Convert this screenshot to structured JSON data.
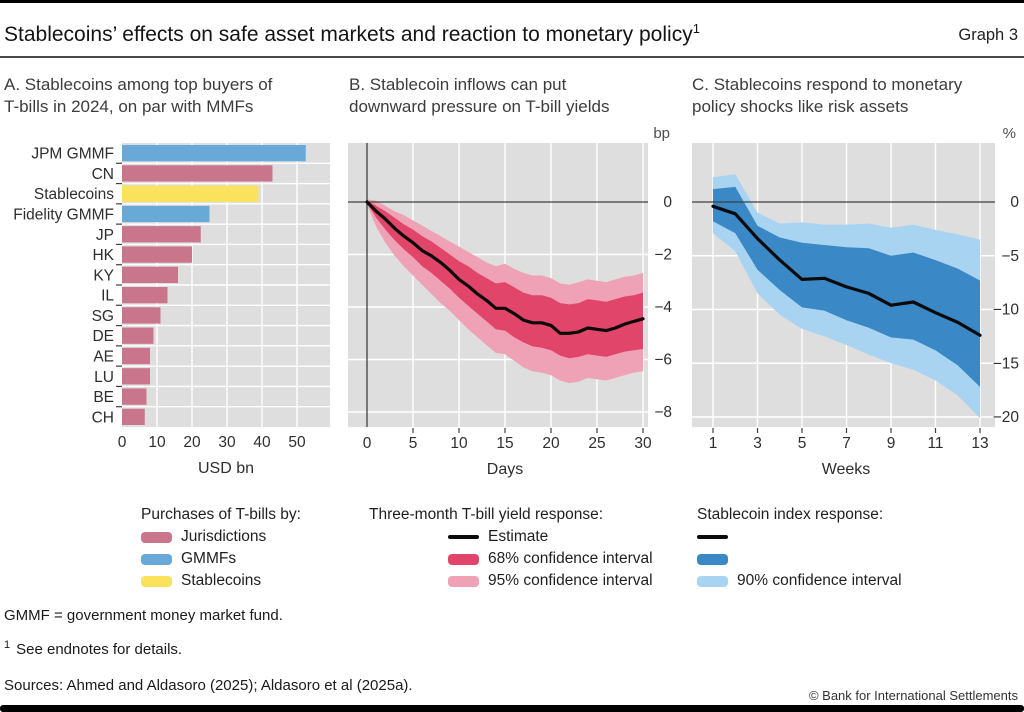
{
  "header": {
    "title": "Stablecoins’ effects on safe asset markets and reaction to monetary policy",
    "title_sup": "1",
    "graph_label": "Graph 3"
  },
  "colors": {
    "plot_bg": "#DEDEDE",
    "grid": "#FFFFFF",
    "axis": "#3F3F3F",
    "tick_text": "#2E2E2E",
    "unit_text": "#4D4D4D",
    "estimate": "#0A0A0A",
    "series": {
      "Jurisdictions": "#C9758C",
      "GMMFs": "#69A9D8",
      "Stablecoins": "#FBE25C"
    },
    "ci68": "#E1466A",
    "ci95": "#EFA2B5",
    "ci_inner_stablecoin": "#3A88C5",
    "ci90_stablecoin": "#A9D4F1"
  },
  "panels": [
    {
      "label": "A",
      "title": "A. Stablecoins among top buyers of T-bills in 2024, on par with MMFs"
    },
    {
      "label": "B",
      "title": "B. Stablecoin inflows can put downward pressure on T-bill yields"
    },
    {
      "label": "C",
      "title": "C. Stablecoins respond to monetary policy shocks like risk assets"
    }
  ],
  "legends": {
    "a": {
      "title": "Purchases of T-bills by:",
      "items": [
        {
          "label": "Jurisdictions"
        },
        {
          "label": "GMMFs"
        },
        {
          "label": "Stablecoins"
        }
      ]
    },
    "b": {
      "title": "Three-month T-bill yield response:",
      "items": [
        {
          "label": "Estimate"
        },
        {
          "label": "68% confidence interval"
        },
        {
          "label": "95% confidence interval"
        }
      ]
    },
    "c": {
      "title": "Stablecoin index response:",
      "items": [
        {
          "label": ""
        },
        {
          "label": ""
        },
        {
          "label": "90% confidence interval"
        }
      ]
    }
  },
  "footnotes": {
    "gmmf": "GMMF = government money market fund.",
    "sup": "1",
    "endnotes": "See endnotes for details.",
    "sources": "Sources: Ahmed and Aldasoro (2025); Aldasoro et al (2025a).",
    "copyright": "© Bank for International Settlements"
  },
  "chart_data": [
    {
      "panel": "A",
      "type": "bar",
      "orientation": "horizontal",
      "title": "A. Stablecoins among top buyers of T-bills in 2024, on par with MMFs",
      "xlabel": "USD bn",
      "xlim": [
        0,
        59.5
      ],
      "xticks": [
        0,
        10,
        20,
        30,
        40,
        50
      ],
      "grid": true,
      "categories": [
        "JPM GMMF",
        "CN",
        "Stablecoins",
        "Fidelity GMMF",
        "JP",
        "HK",
        "KY",
        "IL",
        "SG",
        "DE",
        "AE",
        "LU",
        "BE",
        "CH"
      ],
      "values": [
        52.5,
        43,
        39,
        25,
        22.5,
        20,
        16,
        13,
        11,
        9,
        8,
        8,
        7,
        6.5
      ],
      "series_of": [
        "GMMFs",
        "Jurisdictions",
        "Stablecoins",
        "GMMFs",
        "Jurisdictions",
        "Jurisdictions",
        "Jurisdictions",
        "Jurisdictions",
        "Jurisdictions",
        "Jurisdictions",
        "Jurisdictions",
        "Jurisdictions",
        "Jurisdictions",
        "Jurisdictions"
      ]
    },
    {
      "panel": "B",
      "type": "line",
      "title": "B. Stablecoin inflows can put downward pressure on T-bill yields",
      "unit_label": "bp",
      "xlabel": "Days",
      "xticks": [
        0,
        5,
        10,
        15,
        20,
        25,
        30
      ],
      "yticks": [
        0,
        -2,
        -4,
        -6,
        -8
      ],
      "ylim": [
        -8.6,
        2.2
      ],
      "grid": true,
      "x": [
        0,
        1,
        2,
        3,
        4,
        5,
        6,
        7,
        8,
        9,
        10,
        11,
        12,
        13,
        14,
        15,
        16,
        17,
        18,
        19,
        20,
        21,
        22,
        23,
        24,
        25,
        26,
        27,
        28,
        29,
        30
      ],
      "estimate": [
        0,
        -0.35,
        -0.65,
        -1,
        -1.3,
        -1.55,
        -1.85,
        -2.05,
        -2.3,
        -2.6,
        -2.95,
        -3.2,
        -3.5,
        -3.75,
        -4.05,
        -4.05,
        -4.25,
        -4.5,
        -4.6,
        -4.6,
        -4.7,
        -5,
        -5,
        -4.95,
        -4.8,
        -4.85,
        -4.9,
        -4.8,
        -4.65,
        -4.55,
        -4.45
      ],
      "band68": {
        "upper": [
          0.05,
          -0.15,
          -0.35,
          -0.6,
          -0.85,
          -1.05,
          -1.3,
          -1.5,
          -1.75,
          -2,
          -2.25,
          -2.45,
          -2.7,
          -2.9,
          -3.1,
          -3.05,
          -3.25,
          -3.45,
          -3.55,
          -3.55,
          -3.65,
          -3.85,
          -3.9,
          -3.85,
          -3.7,
          -3.75,
          -3.8,
          -3.7,
          -3.6,
          -3.55,
          -3.45
        ],
        "lower": [
          -0.05,
          -0.6,
          -1.05,
          -1.45,
          -1.8,
          -2.1,
          -2.45,
          -2.7,
          -3,
          -3.3,
          -3.65,
          -3.95,
          -4.25,
          -4.55,
          -4.85,
          -4.9,
          -5.15,
          -5.35,
          -5.5,
          -5.55,
          -5.65,
          -5.85,
          -5.95,
          -5.9,
          -5.8,
          -5.85,
          -5.9,
          -5.8,
          -5.7,
          -5.65,
          -5.6
        ]
      },
      "band95": {
        "upper": [
          0.1,
          0.05,
          -0.15,
          -0.35,
          -0.5,
          -0.7,
          -0.9,
          -1.1,
          -1.3,
          -1.5,
          -1.7,
          -1.9,
          -2.1,
          -2.3,
          -2.45,
          -2.35,
          -2.55,
          -2.7,
          -2.8,
          -2.8,
          -2.9,
          -3.1,
          -3.15,
          -3.05,
          -2.95,
          -3,
          -3.05,
          -2.95,
          -2.85,
          -2.8,
          -2.7
        ],
        "lower": [
          -0.1,
          -0.95,
          -1.55,
          -2.05,
          -2.45,
          -2.8,
          -3.15,
          -3.5,
          -3.85,
          -4.15,
          -4.5,
          -4.85,
          -5.15,
          -5.45,
          -5.75,
          -5.8,
          -6.05,
          -6.3,
          -6.45,
          -6.5,
          -6.6,
          -6.8,
          -6.9,
          -6.85,
          -6.7,
          -6.75,
          -6.8,
          -6.7,
          -6.6,
          -6.5,
          -6.45
        ]
      }
    },
    {
      "panel": "C",
      "type": "line",
      "title": "C. Stablecoins respond to monetary policy shocks like risk assets",
      "unit_label": "%",
      "xlabel": "Weeks",
      "xticks": [
        1,
        3,
        5,
        7,
        9,
        11,
        13
      ],
      "yticks": [
        0,
        -5,
        -10,
        -15,
        -20
      ],
      "ylim": [
        -20.9,
        5.5
      ],
      "grid": true,
      "x": [
        1,
        2,
        3,
        4,
        5,
        6,
        7,
        8,
        9,
        10,
        11,
        12,
        13
      ],
      "estimate": [
        -0.4,
        -1.1,
        -3.4,
        -5.4,
        -7.2,
        -7.1,
        -7.9,
        -8.5,
        -9.6,
        -9.3,
        -10.3,
        -11.2,
        -12.4
      ],
      "band_inner": {
        "upper": [
          1.2,
          1.4,
          -2.2,
          -3.3,
          -3.8,
          -4,
          -4.2,
          -4.3,
          -5,
          -4.7,
          -5.4,
          -6.2,
          -7.3
        ],
        "lower": [
          -1.8,
          -2.9,
          -6.3,
          -8.2,
          -9.8,
          -10.1,
          -11,
          -11.7,
          -12.6,
          -12.8,
          -13.8,
          -15.2,
          -17.2
        ]
      },
      "band90": {
        "upper": [
          2.3,
          2.6,
          -1,
          -2,
          -1.9,
          -2.1,
          -2.1,
          -2,
          -2.4,
          -2.1,
          -2.6,
          -3,
          -3.5
        ],
        "lower": [
          -2.9,
          -4.6,
          -8.5,
          -10.5,
          -11.8,
          -12.5,
          -13.3,
          -14.2,
          -15,
          -15.6,
          -16.6,
          -18,
          -20.1
        ]
      }
    }
  ]
}
